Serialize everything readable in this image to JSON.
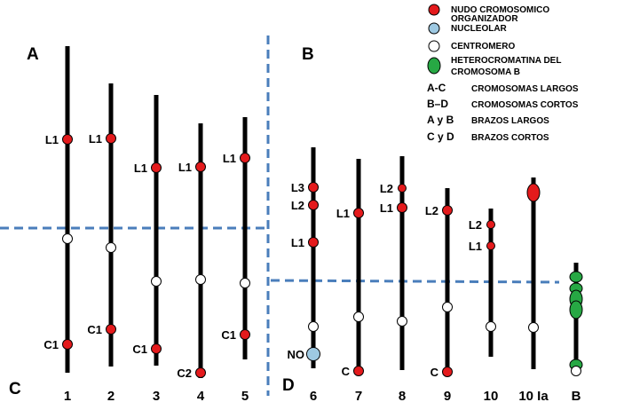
{
  "colors": {
    "knob": "#e41a1c",
    "nucleolar": "#9ec9e2",
    "centromere": "#ffffff",
    "heterochromatin": "#27a844",
    "divider": "#4a7ebb",
    "chromosome": "#000000"
  },
  "quadrants": {
    "a": "A",
    "b": "B",
    "c": "C",
    "d": "D"
  },
  "chromosomes": [
    {
      "id": "c1",
      "label": "1",
      "markers": [
        {
          "type": "knob",
          "label": "L1"
        },
        {
          "type": "centromere",
          "label": ""
        },
        {
          "type": "knob",
          "label": "C1"
        }
      ]
    },
    {
      "id": "c2",
      "label": "2",
      "markers": [
        {
          "type": "knob",
          "label": "L1"
        },
        {
          "type": "centromere",
          "label": ""
        },
        {
          "type": "knob",
          "label": "C1"
        }
      ]
    },
    {
      "id": "c3",
      "label": "3",
      "markers": [
        {
          "type": "knob",
          "label": "L1"
        },
        {
          "type": "centromere",
          "label": ""
        },
        {
          "type": "knob",
          "label": "C1"
        }
      ]
    },
    {
      "id": "c4",
      "label": "4",
      "markers": [
        {
          "type": "knob",
          "label": "L1"
        },
        {
          "type": "centromere",
          "label": ""
        },
        {
          "type": "knob",
          "label": "C2"
        }
      ]
    },
    {
      "id": "c5",
      "label": "5",
      "markers": [
        {
          "type": "knob",
          "label": "L1"
        },
        {
          "type": "centromere",
          "label": ""
        },
        {
          "type": "knob",
          "label": "C1"
        }
      ]
    },
    {
      "id": "c6",
      "label": "6",
      "markers": [
        {
          "type": "knob",
          "label": "L3"
        },
        {
          "type": "knob",
          "label": "L2"
        },
        {
          "type": "knob",
          "label": "L1"
        },
        {
          "type": "centromere",
          "label": ""
        },
        {
          "type": "nucleolar",
          "label": "NO"
        }
      ]
    },
    {
      "id": "c7",
      "label": "7",
      "markers": [
        {
          "type": "knob",
          "label": "L1"
        },
        {
          "type": "centromere",
          "label": ""
        },
        {
          "type": "knob",
          "label": "C"
        }
      ]
    },
    {
      "id": "c8",
      "label": "8",
      "markers": [
        {
          "type": "knob-small",
          "label": "L2"
        },
        {
          "type": "knob",
          "label": "L1"
        },
        {
          "type": "centromere",
          "label": ""
        }
      ]
    },
    {
      "id": "c9",
      "label": "9",
      "markers": [
        {
          "type": "knob",
          "label": "L2"
        },
        {
          "type": "centromere",
          "label": ""
        },
        {
          "type": "knob",
          "label": "C"
        }
      ]
    },
    {
      "id": "c10",
      "label": "10",
      "markers": [
        {
          "type": "knob-small",
          "label": "L2"
        },
        {
          "type": "knob-small",
          "label": "L1"
        },
        {
          "type": "centromere",
          "label": ""
        }
      ]
    },
    {
      "id": "c10ia",
      "label": "10 Ia",
      "markers": [
        {
          "type": "knob-large",
          "label": ""
        },
        {
          "type": "centromere",
          "label": ""
        }
      ]
    },
    {
      "id": "cb",
      "label": "B",
      "markers": [
        {
          "type": "heterochromatin",
          "label": ""
        },
        {
          "type": "heterochromatin",
          "label": ""
        },
        {
          "type": "heterochromatin",
          "label": ""
        },
        {
          "type": "heterochromatin",
          "label": ""
        },
        {
          "type": "heterochromatin",
          "label": ""
        },
        {
          "type": "centromere",
          "label": ""
        }
      ]
    }
  ],
  "legend": {
    "symbols": [
      {
        "type": "knob",
        "lines": [
          "NUDO CROMOSOMICO"
        ]
      },
      {
        "type": "nucleolar",
        "lines": [
          "ORGANIZADOR",
          "NUCLEOLAR"
        ]
      },
      {
        "type": "centromere",
        "lines": [
          "CENTROMERO"
        ]
      },
      {
        "type": "heterochromatin",
        "lines": [
          "HETEROCROMATINA DEL",
          "CROMOSOMA  B"
        ]
      }
    ],
    "keys": [
      {
        "key": "A-C",
        "desc": "CROMOSOMAS LARGOS"
      },
      {
        "key": "B–D",
        "desc": "CROMOSOMAS  CORTOS"
      },
      {
        "key": "A y B",
        "desc": "BRAZOS  LARGOS"
      },
      {
        "key": "C y D",
        "desc": "BRAZOS  CORTOS"
      }
    ]
  }
}
